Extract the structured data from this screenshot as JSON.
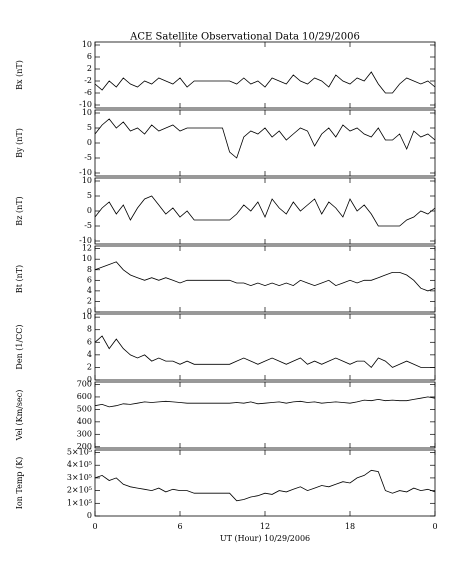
{
  "title": "ACE Satellite Observational Data   10/29/2006",
  "chart_data": [
    {
      "type": "line",
      "y_label": "Bx (nT)",
      "color": "#000000",
      "xlim": [
        0,
        24
      ],
      "xticks": [
        0,
        6,
        12,
        18,
        {
          "value": 24,
          "label": "0"
        }
      ],
      "ylim": [
        -11,
        11
      ],
      "yticks": [
        -10,
        -6,
        -2,
        2,
        6,
        10
      ],
      "x": [
        0,
        0.5,
        1,
        1.5,
        2,
        2.5,
        3,
        3.5,
        4,
        4.5,
        5,
        5.5,
        6,
        6.5,
        7,
        7.5,
        8,
        8.5,
        9,
        9.5,
        10,
        10.5,
        11,
        11.5,
        12,
        12.5,
        13,
        13.5,
        14,
        14.5,
        15,
        15.5,
        16,
        16.5,
        17,
        17.5,
        18,
        18.5,
        19,
        19.5,
        20,
        20.5,
        21,
        21.5,
        22,
        22.5,
        23,
        23.5,
        24
      ],
      "values": [
        -3,
        -5,
        -2,
        -4,
        -1,
        -3,
        -4,
        -2,
        -3,
        -1,
        -2,
        -3,
        -1,
        -4,
        -2,
        -2,
        -2,
        -2,
        -2,
        -2,
        -3,
        -1,
        -3,
        -2,
        -4,
        -1,
        -2,
        -3,
        0,
        -2,
        -3,
        -1,
        -2,
        -4,
        0,
        -2,
        -3,
        -1,
        -2,
        1,
        -3,
        -6,
        -6,
        -3,
        -1,
        -2,
        -3,
        -2,
        -4
      ]
    },
    {
      "type": "line",
      "y_label": "By (nT)",
      "color": "#000000",
      "xlim": [
        0,
        24
      ],
      "xticks": [
        0,
        6,
        12,
        18,
        {
          "value": 24,
          "label": "0"
        }
      ],
      "ylim": [
        -11,
        11
      ],
      "yticks": [
        -10,
        -5,
        0,
        5,
        10
      ],
      "x": [
        0,
        0.5,
        1,
        1.5,
        2,
        2.5,
        3,
        3.5,
        4,
        4.5,
        5,
        5.5,
        6,
        6.5,
        7,
        7.5,
        8,
        8.5,
        9,
        9.5,
        10,
        10.5,
        11,
        11.5,
        12,
        12.5,
        13,
        13.5,
        14,
        14.5,
        15,
        15.5,
        16,
        16.5,
        17,
        17.5,
        18,
        18.5,
        19,
        19.5,
        20,
        20.5,
        21,
        21.5,
        22,
        22.5,
        23,
        23.5,
        24
      ],
      "values": [
        3,
        6,
        8,
        5,
        7,
        4,
        5,
        3,
        6,
        4,
        5,
        6,
        4,
        5,
        5,
        5,
        5,
        5,
        5,
        -3,
        -5,
        2,
        4,
        3,
        5,
        2,
        4,
        1,
        3,
        5,
        4,
        -1,
        3,
        5,
        2,
        6,
        4,
        5,
        3,
        2,
        5,
        1,
        1,
        3,
        -2,
        4,
        2,
        3,
        1
      ]
    },
    {
      "type": "line",
      "y_label": "Bz (nT)",
      "color": "#000000",
      "xlim": [
        0,
        24
      ],
      "xticks": [
        0,
        6,
        12,
        18,
        {
          "value": 24,
          "label": "0"
        }
      ],
      "ylim": [
        -11,
        11
      ],
      "yticks": [
        -10,
        -5,
        0,
        5,
        10
      ],
      "x": [
        0,
        0.5,
        1,
        1.5,
        2,
        2.5,
        3,
        3.5,
        4,
        4.5,
        5,
        5.5,
        6,
        6.5,
        7,
        7.5,
        8,
        8.5,
        9,
        9.5,
        10,
        10.5,
        11,
        11.5,
        12,
        12.5,
        13,
        13.5,
        14,
        14.5,
        15,
        15.5,
        16,
        16.5,
        17,
        17.5,
        18,
        18.5,
        19,
        19.5,
        20,
        20.5,
        21,
        21.5,
        22,
        22.5,
        23,
        23.5,
        24
      ],
      "values": [
        -2,
        1,
        3,
        -1,
        2,
        -3,
        1,
        4,
        5,
        2,
        -1,
        1,
        -2,
        0,
        -3,
        -3,
        -3,
        -3,
        -3,
        -3,
        -1,
        2,
        0,
        3,
        -2,
        4,
        1,
        -1,
        3,
        0,
        2,
        4,
        -1,
        3,
        1,
        -2,
        4,
        0,
        2,
        -1,
        -5,
        -5,
        -5,
        -5,
        -3,
        -2,
        0,
        -1,
        1
      ]
    },
    {
      "type": "line",
      "y_label": "Bt (nT)",
      "color": "#000000",
      "xlim": [
        0,
        24
      ],
      "xticks": [
        0,
        6,
        12,
        18,
        {
          "value": 24,
          "label": "0"
        }
      ],
      "ylim": [
        0,
        12.5
      ],
      "yticks": [
        0,
        2,
        4,
        6,
        8,
        10,
        12
      ],
      "x": [
        0,
        0.5,
        1,
        1.5,
        2,
        2.5,
        3,
        3.5,
        4,
        4.5,
        5,
        5.5,
        6,
        6.5,
        7,
        7.5,
        8,
        8.5,
        9,
        9.5,
        10,
        10.5,
        11,
        11.5,
        12,
        12.5,
        13,
        13.5,
        14,
        14.5,
        15,
        15.5,
        16,
        16.5,
        17,
        17.5,
        18,
        18.5,
        19,
        19.5,
        20,
        20.5,
        21,
        21.5,
        22,
        22.5,
        23,
        23.5,
        24
      ],
      "values": [
        8,
        8.5,
        9,
        9.5,
        8,
        7,
        6.5,
        6,
        6.5,
        6,
        6.5,
        6,
        5.5,
        6,
        6,
        6,
        6,
        6,
        6,
        6,
        5.5,
        5.5,
        5,
        5.5,
        5,
        5.5,
        5,
        5.5,
        5,
        6,
        5.5,
        5,
        5.5,
        6,
        5,
        5.5,
        6,
        5.5,
        6,
        6,
        6.5,
        7,
        7.5,
        7.5,
        7,
        6,
        4.5,
        4,
        4.5
      ]
    },
    {
      "type": "line",
      "y_label": "Den (1/CC)",
      "color": "#000000",
      "xlim": [
        0,
        24
      ],
      "xticks": [
        0,
        6,
        12,
        18,
        {
          "value": 24,
          "label": "0"
        }
      ],
      "ylim": [
        0,
        10.5
      ],
      "yticks": [
        0,
        2,
        4,
        6,
        8,
        10
      ],
      "x": [
        0,
        0.5,
        1,
        1.5,
        2,
        2.5,
        3,
        3.5,
        4,
        4.5,
        5,
        5.5,
        6,
        6.5,
        7,
        7.5,
        8,
        8.5,
        9,
        9.5,
        10,
        10.5,
        11,
        11.5,
        12,
        12.5,
        13,
        13.5,
        14,
        14.5,
        15,
        15.5,
        16,
        16.5,
        17,
        17.5,
        18,
        18.5,
        19,
        19.5,
        20,
        20.5,
        21,
        21.5,
        22,
        22.5,
        23,
        23.5,
        24
      ],
      "values": [
        6,
        7,
        5,
        6.5,
        5,
        4,
        3.5,
        4,
        3,
        3.5,
        3,
        3,
        2.5,
        3,
        2.5,
        2.5,
        2.5,
        2.5,
        2.5,
        2.5,
        3,
        3.5,
        3,
        2.5,
        3,
        3.5,
        3,
        2.5,
        3,
        3.5,
        2.5,
        3,
        2.5,
        3,
        3.5,
        3,
        2.5,
        3,
        3,
        2,
        3.5,
        3,
        2,
        2.5,
        3,
        2.5,
        2,
        2,
        2
      ]
    },
    {
      "type": "line",
      "y_label": "Vel (Km/sec)",
      "color": "#000000",
      "xlim": [
        0,
        24
      ],
      "xticks": [
        0,
        6,
        12,
        18,
        {
          "value": 24,
          "label": "0"
        }
      ],
      "ylim": [
        190,
        720
      ],
      "yticks": [
        200,
        300,
        400,
        500,
        600,
        700
      ],
      "x": [
        0,
        0.5,
        1,
        1.5,
        2,
        2.5,
        3,
        3.5,
        4,
        4.5,
        5,
        5.5,
        6,
        6.5,
        7,
        7.5,
        8,
        8.5,
        9,
        9.5,
        10,
        10.5,
        11,
        11.5,
        12,
        12.5,
        13,
        13.5,
        14,
        14.5,
        15,
        15.5,
        16,
        16.5,
        17,
        17.5,
        18,
        18.5,
        19,
        19.5,
        20,
        20.5,
        21,
        21.5,
        22,
        22.5,
        23,
        23.5,
        24
      ],
      "values": [
        530,
        540,
        520,
        530,
        545,
        540,
        550,
        560,
        555,
        560,
        565,
        560,
        555,
        550,
        550,
        550,
        550,
        550,
        550,
        550,
        555,
        550,
        560,
        545,
        550,
        555,
        560,
        550,
        560,
        565,
        555,
        560,
        550,
        555,
        560,
        555,
        550,
        560,
        575,
        570,
        580,
        570,
        575,
        570,
        570,
        580,
        590,
        600,
        590
      ]
    },
    {
      "type": "line",
      "y_label": "Ion Temp (K)",
      "x_label": "UT (Hour)   10/29/2006",
      "color": "#000000",
      "xlim": [
        0,
        24
      ],
      "xticks": [
        0,
        6,
        12,
        18,
        {
          "value": 24,
          "label": "0"
        }
      ],
      "ylim": [
        0,
        520000
      ],
      "yticks": [
        0,
        {
          "value": 100000,
          "label": "1×10⁵"
        },
        {
          "value": 200000,
          "label": "2×10⁵"
        },
        {
          "value": 300000,
          "label": "3×10⁵"
        },
        {
          "value": 400000,
          "label": "4×10⁵"
        },
        {
          "value": 500000,
          "label": "5×10⁵"
        }
      ],
      "x": [
        0,
        0.5,
        1,
        1.5,
        2,
        2.5,
        3,
        3.5,
        4,
        4.5,
        5,
        5.5,
        6,
        6.5,
        7,
        7.5,
        8,
        8.5,
        9,
        9.5,
        10,
        10.5,
        11,
        11.5,
        12,
        12.5,
        13,
        13.5,
        14,
        14.5,
        15,
        15.5,
        16,
        16.5,
        17,
        17.5,
        18,
        18.5,
        19,
        19.5,
        20,
        20.5,
        21,
        21.5,
        22,
        22.5,
        23,
        23.5,
        24
      ],
      "values": [
        300000,
        320000,
        280000,
        300000,
        250000,
        230000,
        220000,
        210000,
        200000,
        220000,
        190000,
        210000,
        200000,
        200000,
        180000,
        180000,
        180000,
        180000,
        180000,
        180000,
        120000,
        130000,
        150000,
        160000,
        180000,
        170000,
        200000,
        190000,
        210000,
        230000,
        200000,
        220000,
        240000,
        230000,
        250000,
        270000,
        260000,
        300000,
        320000,
        360000,
        350000,
        200000,
        180000,
        200000,
        190000,
        220000,
        200000,
        210000,
        190000
      ]
    }
  ]
}
